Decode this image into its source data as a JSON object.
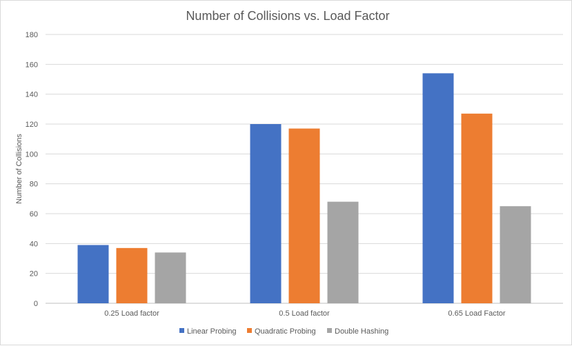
{
  "chart_data": {
    "type": "bar",
    "title": "Number of Collisions vs. Load Factor",
    "xlabel": "",
    "ylabel": "Number of Collisions",
    "ylim": [
      0,
      180
    ],
    "yticks": [
      0,
      20,
      40,
      60,
      80,
      100,
      120,
      140,
      160,
      180
    ],
    "grid": true,
    "legend_position": "bottom",
    "categories": [
      "0.25 Load factor",
      "0.5 Load factor",
      "0.65 Load Factor"
    ],
    "series": [
      {
        "name": "Linear Probing",
        "color": "#4472c4",
        "values": [
          39,
          120,
          154
        ]
      },
      {
        "name": "Quadratic Probing",
        "color": "#ed7d31",
        "values": [
          37,
          117,
          127
        ]
      },
      {
        "name": "Double Hashing",
        "color": "#a5a5a5",
        "values": [
          34,
          68,
          65
        ]
      }
    ]
  }
}
